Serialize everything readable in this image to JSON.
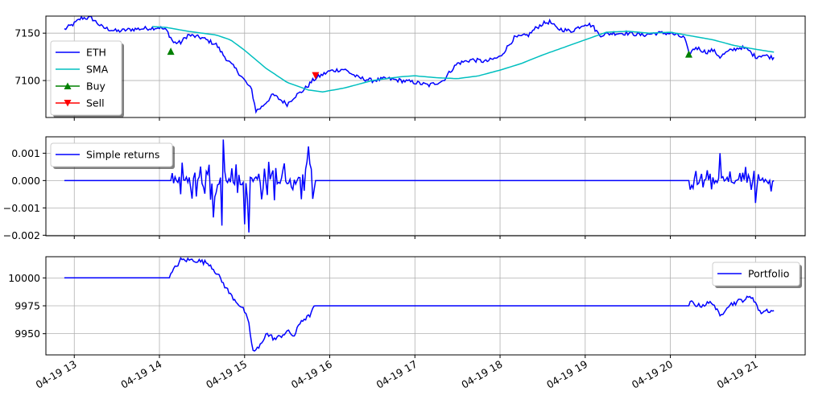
{
  "chart_data": [
    {
      "type": "line",
      "x_start": "04-19 12:53",
      "x_end": "04-19 21:13",
      "x_range": [
        "04-19 12:40",
        "04-19 21:35"
      ],
      "ylim": [
        7061,
        7168
      ],
      "yticks": [
        7100,
        7150
      ],
      "yticklabels": [
        "7100",
        "7150"
      ],
      "grid": true,
      "legend": "upper left",
      "series": [
        {
          "name": "ETH",
          "color": "#0000ff",
          "keypoints": [
            [
              "04-19 12:53",
              7154
            ],
            [
              "04-19 13:00",
              7160
            ],
            [
              "04-19 13:05",
              7166
            ],
            [
              "04-19 13:12",
              7166
            ],
            [
              "04-19 13:20",
              7156
            ],
            [
              "04-19 13:30",
              7152
            ],
            [
              "04-19 13:40",
              7154
            ],
            [
              "04-19 13:50",
              7155
            ],
            [
              "04-19 14:00",
              7156
            ],
            [
              "04-19 14:05",
              7153
            ],
            [
              "04-19 14:10",
              7140
            ],
            [
              "04-19 14:15",
              7140
            ],
            [
              "04-19 14:20",
              7148
            ],
            [
              "04-19 14:30",
              7145
            ],
            [
              "04-19 14:40",
              7138
            ],
            [
              "04-19 14:45",
              7127
            ],
            [
              "04-19 14:50",
              7118
            ],
            [
              "04-19 14:55",
              7110
            ],
            [
              "04-19 15:00",
              7100
            ],
            [
              "04-19 15:05",
              7090
            ],
            [
              "04-19 15:08",
              7068
            ],
            [
              "04-19 15:12",
              7072
            ],
            [
              "04-19 15:20",
              7085
            ],
            [
              "04-19 15:25",
              7080
            ],
            [
              "04-19 15:30",
              7075
            ],
            [
              "04-19 15:35",
              7083
            ],
            [
              "04-19 15:40",
              7088
            ],
            [
              "04-19 15:45",
              7095
            ],
            [
              "04-19 15:48",
              7100
            ],
            [
              "04-19 15:52",
              7104
            ],
            [
              "04-19 16:00",
              7110
            ],
            [
              "04-19 16:10",
              7112
            ],
            [
              "04-19 16:20",
              7103
            ],
            [
              "04-19 16:30",
              7100
            ],
            [
              "04-19 16:40",
              7102
            ],
            [
              "04-19 16:50",
              7100
            ],
            [
              "04-19 17:00",
              7098
            ],
            [
              "04-19 17:10",
              7095
            ],
            [
              "04-19 17:20",
              7100
            ],
            [
              "04-19 17:25",
              7110
            ],
            [
              "04-19 17:30",
              7118
            ],
            [
              "04-19 17:40",
              7122
            ],
            [
              "04-19 17:50",
              7120
            ],
            [
              "04-19 18:00",
              7125
            ],
            [
              "04-19 18:05",
              7135
            ],
            [
              "04-19 18:10",
              7145
            ],
            [
              "04-19 18:20",
              7148
            ],
            [
              "04-19 18:25",
              7155
            ],
            [
              "04-19 18:30",
              7160
            ],
            [
              "04-19 18:35",
              7162
            ],
            [
              "04-19 18:40",
              7155
            ],
            [
              "04-19 18:50",
              7152
            ],
            [
              "04-19 19:00",
              7160
            ],
            [
              "04-19 19:05",
              7158
            ],
            [
              "04-19 19:10",
              7148
            ],
            [
              "04-19 19:20",
              7150
            ],
            [
              "04-19 19:30",
              7150
            ],
            [
              "04-19 19:40",
              7148
            ],
            [
              "04-19 19:50",
              7150
            ],
            [
              "04-19 20:00",
              7150
            ],
            [
              "04-19 20:10",
              7145
            ],
            [
              "04-19 20:13",
              7128
            ],
            [
              "04-19 20:18",
              7135
            ],
            [
              "04-19 20:25",
              7130
            ],
            [
              "04-19 20:30",
              7132
            ],
            [
              "04-19 20:35",
              7125
            ],
            [
              "04-19 20:40",
              7130
            ],
            [
              "04-19 20:45",
              7133
            ],
            [
              "04-19 20:50",
              7135
            ],
            [
              "04-19 20:55",
              7132
            ],
            [
              "04-19 21:00",
              7125
            ],
            [
              "04-19 21:05",
              7127
            ],
            [
              "04-19 21:13",
              7124
            ]
          ]
        },
        {
          "name": "SMA",
          "color": "#00bfbf",
          "keypoints": [
            [
              "04-19 13:55",
              7157
            ],
            [
              "04-19 14:05",
              7156
            ],
            [
              "04-19 14:20",
              7152
            ],
            [
              "04-19 14:40",
              7148
            ],
            [
              "04-19 14:50",
              7143
            ],
            [
              "04-19 15:00",
              7132
            ],
            [
              "04-19 15:15",
              7113
            ],
            [
              "04-19 15:30",
              7098
            ],
            [
              "04-19 15:45",
              7090
            ],
            [
              "04-19 15:55",
              7088
            ],
            [
              "04-19 16:10",
              7092
            ],
            [
              "04-19 16:30",
              7100
            ],
            [
              "04-19 16:50",
              7104
            ],
            [
              "04-19 17:00",
              7105
            ],
            [
              "04-19 17:15",
              7103
            ],
            [
              "04-19 17:30",
              7102
            ],
            [
              "04-19 17:45",
              7105
            ],
            [
              "04-19 18:00",
              7111
            ],
            [
              "04-19 18:15",
              7118
            ],
            [
              "04-19 18:30",
              7127
            ],
            [
              "04-19 18:45",
              7135
            ],
            [
              "04-19 19:00",
              7143
            ],
            [
              "04-19 19:15",
              7151
            ],
            [
              "04-19 19:30",
              7152
            ],
            [
              "04-19 19:45",
              7150
            ],
            [
              "04-19 20:00",
              7151
            ],
            [
              "04-19 20:15",
              7147
            ],
            [
              "04-19 20:30",
              7143
            ],
            [
              "04-19 20:45",
              7137
            ],
            [
              "04-19 21:00",
              7133
            ],
            [
              "04-19 21:13",
              7130
            ]
          ]
        }
      ],
      "markers": [
        {
          "name": "Buy",
          "color": "#008000",
          "shape": "triangle-up",
          "points": [
            [
              "04-19 14:08",
              7131
            ],
            [
              "04-19 20:13",
              7128
            ]
          ]
        },
        {
          "name": "Sell",
          "color": "#ff0000",
          "shape": "triangle-down",
          "points": [
            [
              "04-19 15:50",
              7105
            ]
          ]
        }
      ]
    },
    {
      "type": "line",
      "x_range": [
        "04-19 12:40",
        "04-19 21:35"
      ],
      "ylim": [
        -0.00202,
        0.0016
      ],
      "yticks": [
        -0.002,
        -0.001,
        0.0,
        0.001
      ],
      "yticklabels": [
        "−0.002",
        "−0.001",
        "0.000",
        "0.001"
      ],
      "grid": true,
      "legend": "upper left",
      "series": [
        {
          "name": "Simple returns",
          "color": "#0000ff",
          "flat_segments": [
            [
              "04-19 12:53",
              "04-19 14:08"
            ],
            [
              "04-19 15:50",
              "04-19 20:13"
            ]
          ],
          "noise_segments": [
            [
              "04-19 14:08",
              "04-19 15:50"
            ],
            [
              "04-19 20:13",
              "04-19 21:13"
            ]
          ],
          "extremes": [
            [
              "04-19 14:45",
              0.0015
            ],
            [
              "04-19 15:03",
              -0.0019
            ],
            [
              "04-19 15:45",
              0.00125
            ],
            [
              "04-19 14:38",
              -0.00135
            ],
            [
              "04-19 14:44",
              -0.00165
            ],
            [
              "04-19 15:00",
              -0.0016
            ],
            [
              "04-19 20:35",
              0.001
            ],
            [
              "04-19 21:00",
              -0.00082
            ],
            [
              "04-19 20:53",
              0.0005
            ]
          ],
          "final": [
            "04-19 21:13",
            0.0
          ]
        }
      ]
    },
    {
      "type": "line",
      "x_range": [
        "04-19 12:40",
        "04-19 21:35"
      ],
      "ylim": [
        9931,
        10019
      ],
      "yticks": [
        9950,
        9975,
        10000
      ],
      "yticklabels": [
        "9950",
        "9975",
        "10000"
      ],
      "xticks": [
        "04-19 13:00",
        "04-19 14:00",
        "04-19 15:00",
        "04-19 16:00",
        "04-19 17:00",
        "04-19 18:00",
        "04-19 19:00",
        "04-19 20:00",
        "04-19 21:00"
      ],
      "xticklabels": [
        "04-19 13",
        "04-19 14",
        "04-19 15",
        "04-19 16",
        "04-19 17",
        "04-19 18",
        "04-19 19",
        "04-19 20",
        "04-19 21"
      ],
      "grid": true,
      "legend": "upper right",
      "series": [
        {
          "name": "Portfolio",
          "color": "#0000ff",
          "keypoints": [
            [
              "04-19 12:53",
              10000
            ],
            [
              "04-19 14:07",
              10000
            ],
            [
              "04-19 14:10",
              10007
            ],
            [
              "04-19 14:15",
              10016
            ],
            [
              "04-19 14:25",
              10016
            ],
            [
              "04-19 14:35",
              10013
            ],
            [
              "04-19 14:40",
              10005
            ],
            [
              "04-19 14:45",
              9995
            ],
            [
              "04-19 14:50",
              9985
            ],
            [
              "04-19 14:55",
              9978
            ],
            [
              "04-19 15:00",
              9970
            ],
            [
              "04-19 15:03",
              9958
            ],
            [
              "04-19 15:06",
              9934
            ],
            [
              "04-19 15:10",
              9937
            ],
            [
              "04-19 15:15",
              9950
            ],
            [
              "04-19 15:22",
              9945
            ],
            [
              "04-19 15:30",
              9952
            ],
            [
              "04-19 15:35",
              9948
            ],
            [
              "04-19 15:40",
              9962
            ],
            [
              "04-19 15:45",
              9965
            ],
            [
              "04-19 15:50",
              9975
            ],
            [
              "04-19 20:12",
              9975
            ],
            [
              "04-19 20:15",
              9978
            ],
            [
              "04-19 20:20",
              9975
            ],
            [
              "04-19 20:30",
              9978
            ],
            [
              "04-19 20:35",
              9965
            ],
            [
              "04-19 20:40",
              9975
            ],
            [
              "04-19 20:50",
              9980
            ],
            [
              "04-19 20:58",
              9983
            ],
            [
              "04-19 21:00",
              9978
            ],
            [
              "04-19 21:03",
              9969
            ],
            [
              "04-19 21:08",
              9971
            ],
            [
              "04-19 21:13",
              9970
            ]
          ]
        }
      ]
    }
  ]
}
